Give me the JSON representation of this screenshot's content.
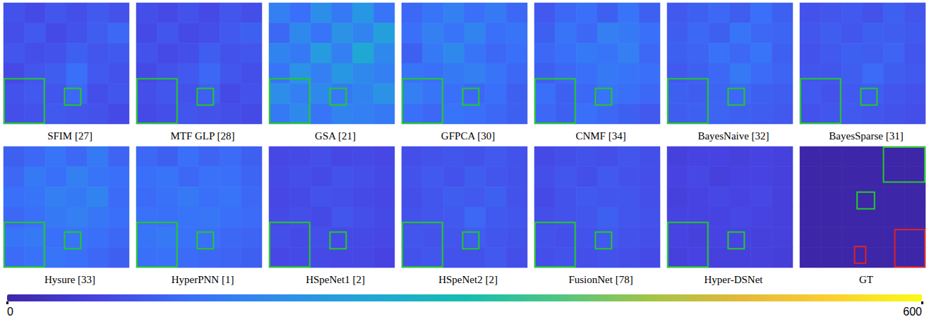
{
  "chart_data": {
    "type": "heatmap",
    "tick_labels": false,
    "colorbar": {
      "range": [
        0,
        600
      ],
      "ticks": [
        0,
        600
      ]
    },
    "panels": [
      {
        "title": "SFIM [27]",
        "cells": [
          [
            80,
            70,
            85,
            75,
            90,
            80
          ],
          [
            75,
            90,
            70,
            80,
            95,
            110
          ],
          [
            85,
            75,
            80,
            100,
            85,
            90
          ],
          [
            70,
            85,
            95,
            120,
            90,
            80
          ],
          [
            80,
            90,
            85,
            110,
            75,
            85
          ],
          [
            75,
            80,
            90,
            85,
            80,
            70
          ]
        ]
      },
      {
        "title": "MTF GLP [28]",
        "cells": [
          [
            75,
            70,
            80,
            70,
            85,
            75
          ],
          [
            70,
            85,
            70,
            75,
            90,
            100
          ],
          [
            80,
            70,
            75,
            95,
            80,
            85
          ],
          [
            70,
            80,
            90,
            110,
            85,
            75
          ],
          [
            75,
            85,
            80,
            100,
            70,
            80
          ],
          [
            70,
            75,
            85,
            80,
            75,
            70
          ]
        ]
      },
      {
        "title": "GSA [21]",
        "cells": [
          [
            150,
            120,
            180,
            140,
            200,
            130
          ],
          [
            110,
            170,
            130,
            190,
            160,
            220
          ],
          [
            160,
            140,
            210,
            150,
            240,
            170
          ],
          [
            130,
            190,
            150,
            200,
            170,
            150
          ],
          [
            180,
            150,
            170,
            140,
            160,
            190
          ],
          [
            140,
            170,
            130,
            160,
            150,
            140
          ]
        ]
      },
      {
        "title": "GFPCA [30]",
        "cells": [
          [
            110,
            130,
            150,
            120,
            140,
            110
          ],
          [
            120,
            150,
            130,
            160,
            120,
            130
          ],
          [
            100,
            140,
            170,
            130,
            110,
            120
          ],
          [
            130,
            120,
            140,
            150,
            130,
            110
          ],
          [
            150,
            130,
            120,
            110,
            120,
            100
          ],
          [
            120,
            110,
            130,
            120,
            110,
            100
          ]
        ]
      },
      {
        "title": "CNMF [34]",
        "cells": [
          [
            90,
            110,
            120,
            100,
            130,
            100
          ],
          [
            100,
            130,
            110,
            150,
            140,
            120
          ],
          [
            110,
            120,
            140,
            130,
            150,
            110
          ],
          [
            100,
            110,
            120,
            140,
            130,
            120
          ],
          [
            120,
            100,
            110,
            130,
            120,
            110
          ],
          [
            110,
            100,
            120,
            110,
            100,
            90
          ]
        ]
      },
      {
        "title": "BayesNaive [32]",
        "cells": [
          [
            90,
            100,
            110,
            95,
            120,
            100
          ],
          [
            95,
            110,
            100,
            130,
            110,
            105
          ],
          [
            100,
            105,
            125,
            110,
            130,
            100
          ],
          [
            90,
            100,
            110,
            140,
            115,
            105
          ],
          [
            100,
            95,
            105,
            110,
            100,
            95
          ],
          [
            95,
            100,
            105,
            100,
            95,
            90
          ]
        ]
      },
      {
        "title": "BayesSparse [31]",
        "cells": [
          [
            80,
            85,
            90,
            80,
            100,
            85
          ],
          [
            85,
            95,
            85,
            100,
            95,
            90
          ],
          [
            80,
            90,
            100,
            95,
            105,
            85
          ],
          [
            85,
            85,
            95,
            115,
            95,
            90
          ],
          [
            90,
            80,
            90,
            95,
            85,
            80
          ],
          [
            80,
            85,
            90,
            85,
            80,
            75
          ]
        ]
      },
      {
        "title": "Hysure [33]",
        "cells": [
          [
            100,
            110,
            130,
            110,
            140,
            105
          ],
          [
            110,
            140,
            120,
            150,
            130,
            120
          ],
          [
            120,
            130,
            150,
            140,
            160,
            115
          ],
          [
            110,
            120,
            140,
            150,
            135,
            120
          ],
          [
            130,
            140,
            120,
            130,
            120,
            110
          ],
          [
            115,
            125,
            130,
            120,
            110,
            100
          ]
        ]
      },
      {
        "title": "HyperPNN [1]",
        "cells": [
          [
            110,
            100,
            120,
            105,
            115,
            100
          ],
          [
            120,
            130,
            110,
            125,
            120,
            105
          ],
          [
            115,
            125,
            140,
            120,
            130,
            110
          ],
          [
            125,
            120,
            130,
            135,
            120,
            115
          ],
          [
            130,
            140,
            125,
            120,
            110,
            105
          ],
          [
            120,
            125,
            115,
            110,
            105,
            100
          ]
        ]
      },
      {
        "title": "HSpeNet1 [2]",
        "cells": [
          [
            65,
            70,
            75,
            65,
            70,
            65
          ],
          [
            70,
            75,
            70,
            80,
            75,
            70
          ],
          [
            65,
            70,
            80,
            75,
            70,
            65
          ],
          [
            70,
            75,
            70,
            85,
            75,
            70
          ],
          [
            75,
            70,
            75,
            70,
            70,
            65
          ],
          [
            65,
            70,
            70,
            65,
            65,
            60
          ]
        ]
      },
      {
        "title": "HSpeNet2 [2]",
        "cells": [
          [
            75,
            80,
            85,
            80,
            90,
            80
          ],
          [
            80,
            90,
            80,
            95,
            85,
            80
          ],
          [
            75,
            85,
            95,
            90,
            100,
            80
          ],
          [
            80,
            85,
            90,
            110,
            90,
            85
          ],
          [
            85,
            80,
            85,
            95,
            85,
            80
          ],
          [
            80,
            85,
            80,
            80,
            90,
            75
          ]
        ]
      },
      {
        "title": "FusionNet [78]",
        "cells": [
          [
            70,
            75,
            80,
            75,
            85,
            75
          ],
          [
            75,
            85,
            75,
            90,
            80,
            75
          ],
          [
            70,
            80,
            90,
            85,
            85,
            75
          ],
          [
            75,
            80,
            85,
            100,
            85,
            80
          ],
          [
            80,
            75,
            80,
            90,
            80,
            75
          ],
          [
            75,
            80,
            75,
            80,
            75,
            70
          ]
        ]
      },
      {
        "title": "Hyper-DSNet",
        "cells": [
          [
            55,
            60,
            60,
            55,
            60,
            55
          ],
          [
            60,
            65,
            55,
            60,
            60,
            55
          ],
          [
            55,
            60,
            65,
            60,
            65,
            55
          ],
          [
            60,
            60,
            60,
            65,
            60,
            55
          ],
          [
            60,
            55,
            60,
            60,
            55,
            55
          ],
          [
            55,
            60,
            55,
            55,
            55,
            50
          ]
        ]
      },
      {
        "title": "GT",
        "cells": [
          [
            0,
            0,
            0,
            0,
            0,
            0
          ],
          [
            0,
            0,
            0,
            0,
            0,
            0
          ],
          [
            0,
            0,
            0,
            0,
            0,
            0
          ],
          [
            0,
            0,
            0,
            0,
            0,
            0
          ],
          [
            0,
            0,
            0,
            0,
            0,
            0
          ],
          [
            0,
            0,
            0,
            0,
            0,
            0
          ]
        ]
      }
    ]
  }
}
